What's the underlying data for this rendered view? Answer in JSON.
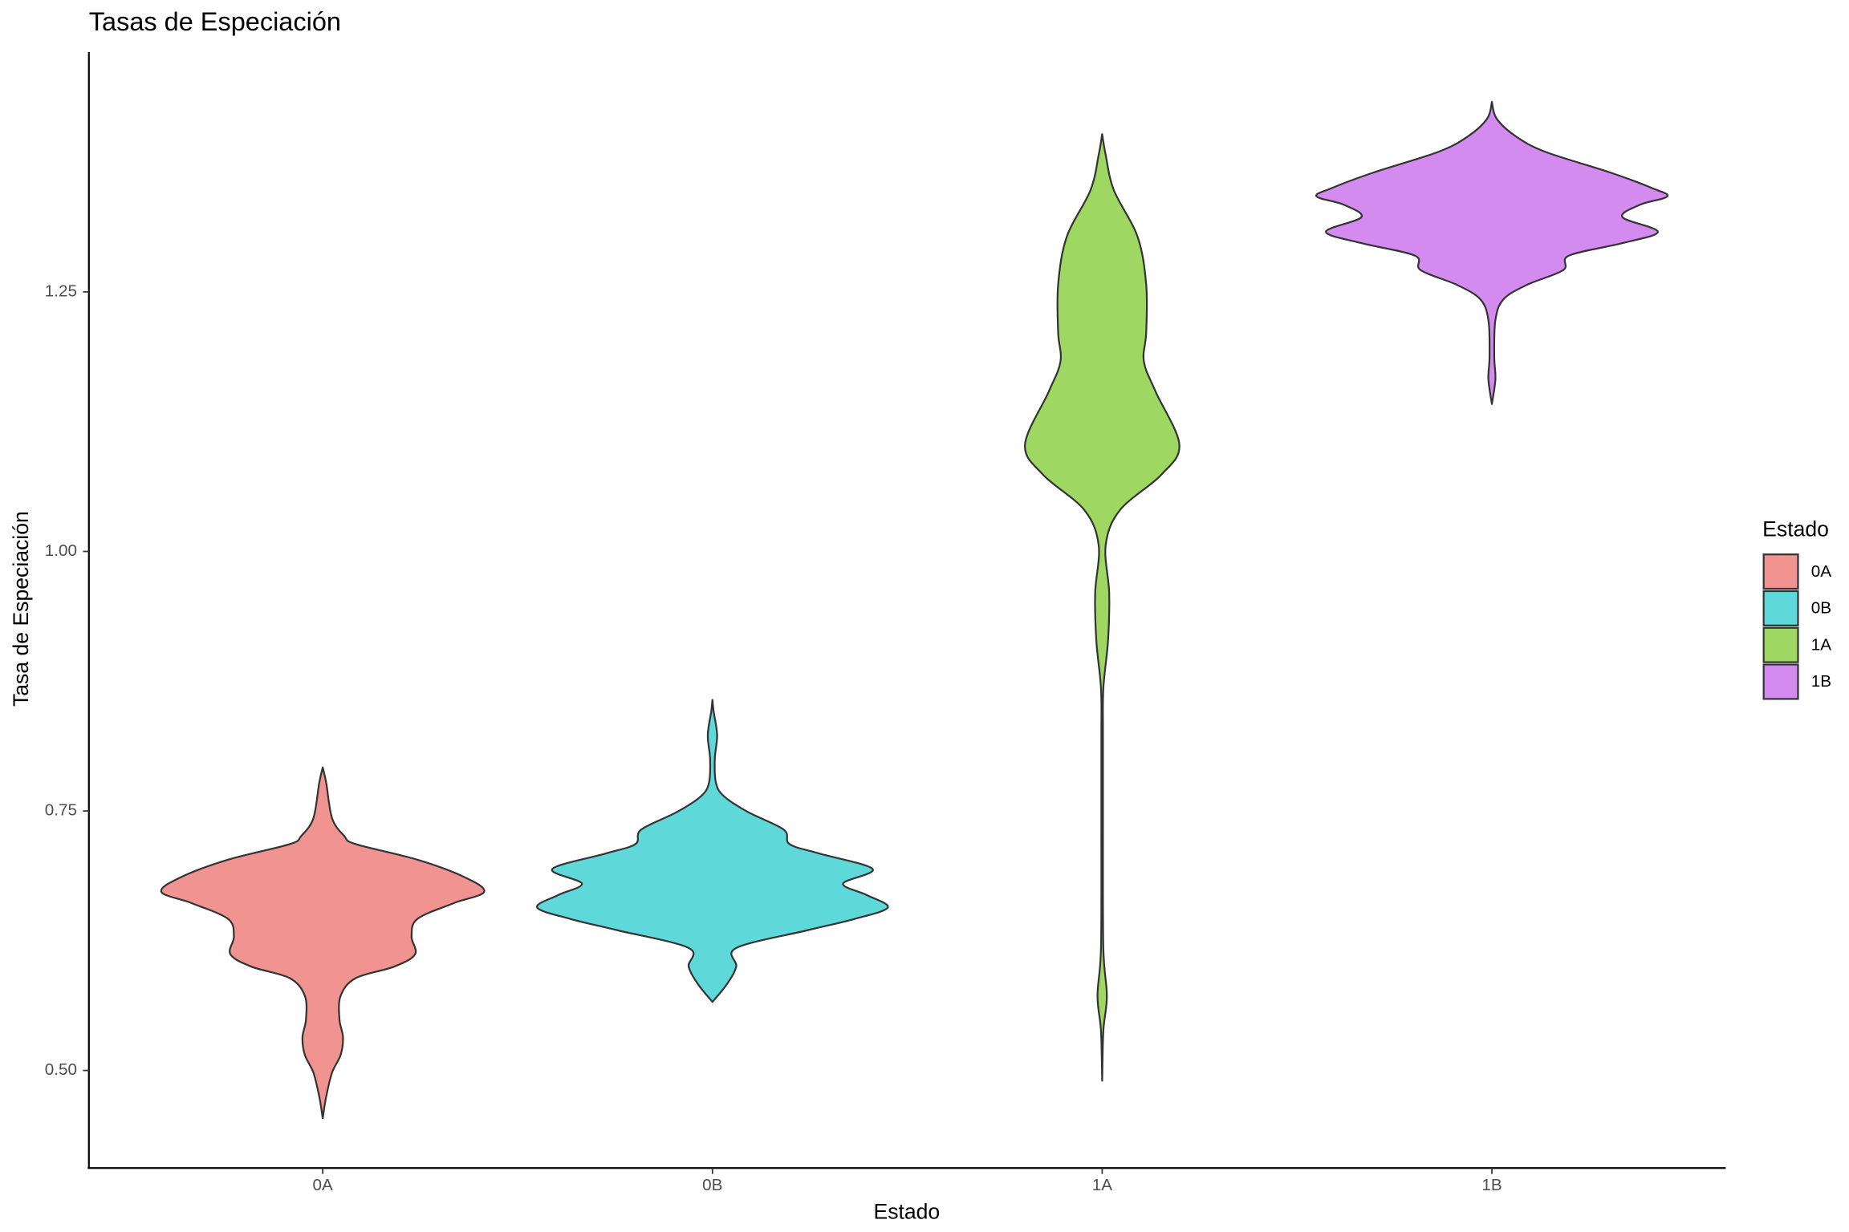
{
  "chart_data": {
    "type": "violin",
    "title": "Tasas de Especiación",
    "x_label": "Estado",
    "y_label": "Tasa de Especiación",
    "legend_title": "Estado",
    "legend_position": "right",
    "categories": [
      "0A",
      "0B",
      "1A",
      "1B"
    ],
    "ylim": [
      0.406,
      1.481
    ],
    "yticks": [
      {
        "value": 0.5,
        "label": "0.50"
      },
      {
        "value": 0.75,
        "label": "0.75"
      },
      {
        "value": 1,
        "label": "1.00"
      },
      {
        "value": 1.25,
        "label": "1.25"
      }
    ],
    "grid": false,
    "series": [
      {
        "name": "0A",
        "color": "#f19391",
        "y": [
          0.792,
          0.777,
          0.743,
          0.726,
          0.718,
          0.703,
          0.686,
          0.672,
          0.661,
          0.646,
          0.629,
          0.612,
          0.6,
          0.589,
          0.572,
          0.549,
          0.532,
          0.515,
          0.498,
          0.475,
          0.454
        ],
        "half_width": [
          0,
          0.009,
          0.024,
          0.055,
          0.085,
          0.243,
          0.365,
          0.414,
          0.335,
          0.243,
          0.228,
          0.237,
          0.183,
          0.085,
          0.046,
          0.043,
          0.052,
          0.046,
          0.024,
          0.009,
          0
        ]
      },
      {
        "name": "0B",
        "color": "#5fd8da",
        "y": [
          0.857,
          0.846,
          0.823,
          0.8,
          0.777,
          0.764,
          0.749,
          0.732,
          0.718,
          0.709,
          0.694,
          0.68,
          0.669,
          0.657,
          0.646,
          0.635,
          0.618,
          0.6,
          0.583,
          0.566
        ],
        "half_width": [
          0,
          0.003,
          0.012,
          0.006,
          0.009,
          0.03,
          0.091,
          0.183,
          0.198,
          0.274,
          0.411,
          0.335,
          0.396,
          0.45,
          0.365,
          0.243,
          0.061,
          0.061,
          0.037,
          0
        ]
      },
      {
        "name": "1A",
        "color": "#9ed862",
        "y": [
          1.402,
          1.382,
          1.348,
          1.303,
          1.257,
          1.211,
          1.183,
          1.154,
          1.103,
          1.074,
          1.04,
          1.006,
          0.96,
          0.914,
          0.868,
          0.823,
          0.732,
          0.618,
          0.572,
          0.538,
          0.49
        ],
        "half_width": [
          0,
          0.009,
          0.03,
          0.091,
          0.113,
          0.113,
          0.107,
          0.137,
          0.198,
          0.152,
          0.046,
          0.009,
          0.018,
          0.015,
          0.003,
          0.002,
          0.002,
          0.003,
          0.012,
          0.003,
          0
        ]
      },
      {
        "name": "1B",
        "color": "#d48bf0",
        "y": [
          1.433,
          1.417,
          1.4,
          1.385,
          1.365,
          1.35,
          1.342,
          1.334,
          1.322,
          1.308,
          1.297,
          1.285,
          1.271,
          1.257,
          1.243,
          1.223,
          1.188,
          1.166,
          1.142
        ],
        "half_width": [
          0,
          0.012,
          0.061,
          0.137,
          0.304,
          0.411,
          0.45,
          0.38,
          0.335,
          0.426,
          0.335,
          0.198,
          0.183,
          0.091,
          0.03,
          0.009,
          0.006,
          0.009,
          0
        ]
      }
    ]
  }
}
